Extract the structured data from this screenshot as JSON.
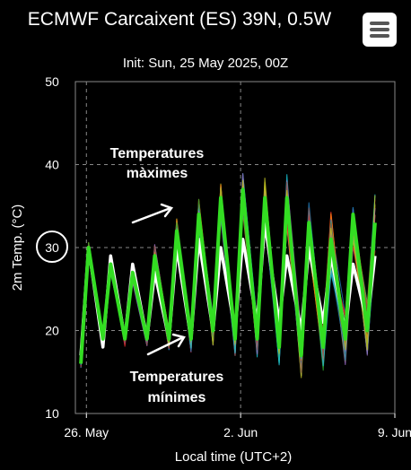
{
  "header": {
    "title": "ECMWF Carcaixent (ES) 39N, 0.5W",
    "subtitle": "Init: Sun, 25 May 2025, 00Z",
    "menu_icon": "hamburger-menu-icon"
  },
  "chart_data": {
    "type": "line",
    "xlabel": "Local time (UTC+2)",
    "ylabel": "2m Temp. (°C)",
    "ylim": [
      10,
      50
    ],
    "xlim_days": [
      25.5,
      40.0
    ],
    "y_ticks": [
      "10",
      "20",
      "30",
      "40",
      "50"
    ],
    "x_ticks": [
      {
        "label": "26. May",
        "day": 26
      },
      {
        "label": "2. Jun",
        "day": 33
      },
      {
        "label": "9. Jun",
        "day": 40
      }
    ],
    "highlighted_tick": "30",
    "grid": true,
    "colors": {
      "ensemble_mean": "#ffffff",
      "control": "#33dd22",
      "members": [
        "#1f77b4",
        "#ff7f0e",
        "#2ca02c",
        "#d62728",
        "#9467bd",
        "#8c564b",
        "#17becf",
        "#bcbd22"
      ],
      "grid": "#888888"
    },
    "series": [
      {
        "role": "ensemble-mean",
        "daily_max": [
          30,
          29,
          28,
          27,
          30,
          31,
          30,
          31,
          33,
          29,
          30,
          29,
          28,
          29
        ],
        "daily_min": [
          17,
          18,
          19,
          19,
          19,
          19,
          20,
          20,
          21,
          21,
          20,
          21,
          20,
          21
        ]
      },
      {
        "role": "control",
        "daily_max": [
          30,
          28,
          27,
          29,
          32,
          34,
          36,
          37,
          36,
          36,
          33,
          31,
          34,
          33
        ],
        "daily_min": [
          16,
          19,
          19,
          19,
          19,
          19,
          20,
          19,
          19,
          18,
          17,
          18,
          19,
          20
        ]
      }
    ],
    "annotations": [
      {
        "line1": "Temperatures",
        "line2": "màximes"
      },
      {
        "line1": "Temperatures",
        "line2": "mínimes"
      }
    ]
  }
}
